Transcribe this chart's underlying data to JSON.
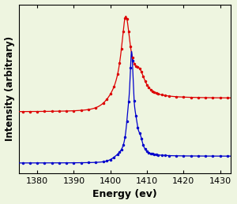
{
  "xlabel": "Energy (ev)",
  "ylabel": "Intensity (arbitrary)",
  "xlim": [
    1375,
    1433
  ],
  "background_color": "#eef5e0",
  "red_color": "#dd0000",
  "blue_color": "#0000cc",
  "x_ticks": [
    1380,
    1390,
    1400,
    1410,
    1420,
    1430
  ],
  "marker_size": 2.5,
  "red_baseline_low": 0.3,
  "red_baseline_high": 0.42,
  "blue_baseline": 0.0
}
